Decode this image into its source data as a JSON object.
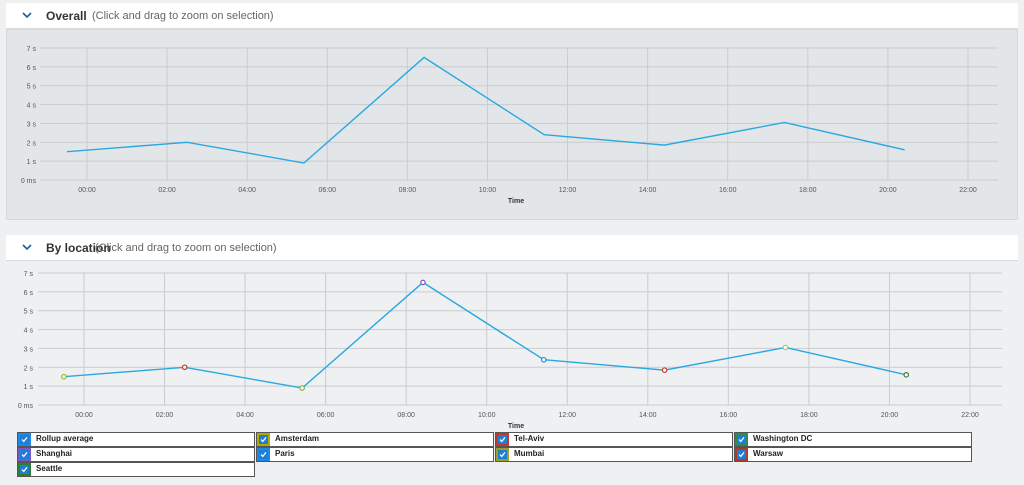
{
  "overall": {
    "title": "Overall",
    "hint": "(Click and drag to zoom on selection)"
  },
  "by_location": {
    "title": "By location",
    "hint": "(Click and drag to zoom on selection)"
  },
  "colors": {
    "line": "#29a8e0",
    "grid": "#c9ccd0",
    "axis_text": "#555555"
  },
  "chart_data": [
    {
      "type": "line",
      "x": [
        "23:30",
        "02:30",
        "05:25",
        "08:25",
        "11:25",
        "14:25",
        "17:25",
        "20:25"
      ],
      "series": [
        {
          "values": [
            1.5,
            2.0,
            0.9,
            6.5,
            2.4,
            1.85,
            3.05,
            1.6
          ]
        }
      ],
      "xticks": [
        "00:00",
        "02:00",
        "04:00",
        "06:00",
        "08:00",
        "10:00",
        "12:00",
        "14:00",
        "16:00",
        "18:00",
        "20:00",
        "22:00"
      ],
      "yticks": [
        "0 ms",
        "1 s",
        "2 s",
        "3 s",
        "4 s",
        "5 s",
        "6 s",
        "7 s"
      ],
      "ylim": [
        0,
        7
      ],
      "xlabel": "Time",
      "grid": true
    },
    {
      "type": "line",
      "x": [
        "23:30",
        "02:30",
        "05:25",
        "08:25",
        "11:25",
        "14:25",
        "17:25",
        "20:25"
      ],
      "series": [
        {
          "name": "Rollup average",
          "values": [
            1.5,
            2.0,
            0.9,
            6.5,
            2.4,
            1.85,
            3.05,
            1.6
          ]
        }
      ],
      "point_colors": [
        "#8fbf1f",
        "#c0392b",
        "#7cb342",
        "#7e57c2",
        "#1e88e5",
        "#c0392b",
        "#c0ca33",
        "#2e7d32"
      ],
      "xticks": [
        "00:00",
        "02:00",
        "04:00",
        "06:00",
        "08:00",
        "10:00",
        "12:00",
        "14:00",
        "16:00",
        "18:00",
        "20:00",
        "22:00"
      ],
      "yticks": [
        "0 ms",
        "1 s",
        "2 s",
        "3 s",
        "4 s",
        "5 s",
        "6 s",
        "7 s"
      ],
      "ylim": [
        0,
        7
      ],
      "xlabel": "Time",
      "grid": true
    }
  ],
  "legend": [
    {
      "label": "Rollup average",
      "color": "#1e88e5"
    },
    {
      "label": "Amsterdam",
      "color": "#b5a800"
    },
    {
      "label": "Tel-Aviv",
      "color": "#c0392b"
    },
    {
      "label": "Washington DC",
      "color": "#2e8b57"
    },
    {
      "label": "Shanghai",
      "color": "#7e57c2"
    },
    {
      "label": "Paris",
      "color": "#1e88e5"
    },
    {
      "label": "Mumbai",
      "color": "#9e9d24"
    },
    {
      "label": "Warsaw",
      "color": "#b03a2e"
    },
    {
      "label": "Seattle",
      "color": "#2e7d32"
    }
  ]
}
